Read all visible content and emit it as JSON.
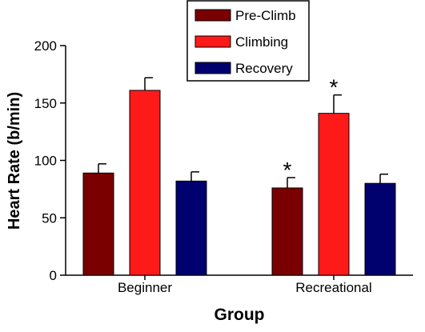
{
  "chart_data": {
    "type": "bar",
    "title": "",
    "xlabel": "Group",
    "ylabel": "Heart Rate (b/min)",
    "ylim": [
      0,
      200
    ],
    "yticks": [
      0,
      50,
      100,
      150,
      200
    ],
    "categories": [
      "Beginner",
      "Recreational"
    ],
    "series": [
      {
        "name": "Pre-Climb",
        "color": "#7a0000",
        "values": [
          89,
          76
        ],
        "errors": [
          8,
          9
        ]
      },
      {
        "name": "Climbing",
        "color": "#ff1a1a",
        "values": [
          161,
          141
        ],
        "errors": [
          11,
          16
        ]
      },
      {
        "name": "Recovery",
        "color": "#00006e",
        "values": [
          82,
          80
        ],
        "errors": [
          8,
          8
        ]
      }
    ],
    "annotations": [
      {
        "text": "*",
        "category": "Recreational",
        "series": "Pre-Climb"
      },
      {
        "text": "*",
        "category": "Recreational",
        "series": "Climbing"
      }
    ],
    "legend_position": "top-center",
    "grid": false
  }
}
